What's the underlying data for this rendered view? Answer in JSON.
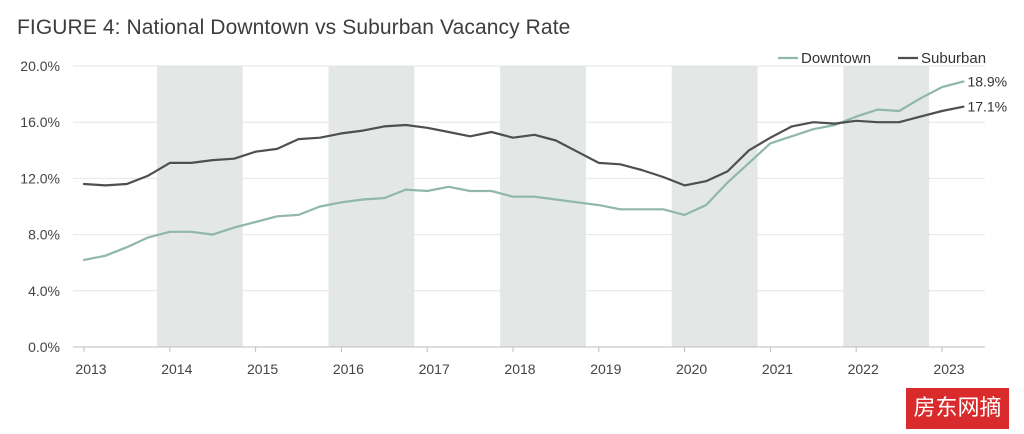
{
  "chart_data": {
    "type": "line",
    "title": "FIGURE 4: National Downtown vs Suburban Vacancy Rate",
    "xlabel": "",
    "ylabel": "",
    "xlim": [
      2013,
      2023.45
    ],
    "ylim": [
      0,
      20
    ],
    "yticks": [
      {
        "value": 0,
        "label": "0.0%"
      },
      {
        "value": 4,
        "label": "4.0%"
      },
      {
        "value": 8,
        "label": "8.0%"
      },
      {
        "value": 12,
        "label": "12.0%"
      },
      {
        "value": 16,
        "label": "16.0%"
      },
      {
        "value": 20,
        "label": "20.0%"
      }
    ],
    "xticks": [
      {
        "value": 2013,
        "label": "2013"
      },
      {
        "value": 2014,
        "label": "2014"
      },
      {
        "value": 2015,
        "label": "2015"
      },
      {
        "value": 2016,
        "label": "2016"
      },
      {
        "value": 2017,
        "label": "2017"
      },
      {
        "value": 2018,
        "label": "2018"
      },
      {
        "value": 2019,
        "label": "2019"
      },
      {
        "value": 2020,
        "label": "2020"
      },
      {
        "value": 2021,
        "label": "2021"
      },
      {
        "value": 2022,
        "label": "2022"
      },
      {
        "value": 2023,
        "label": "2023"
      }
    ],
    "shaded_periods": [
      [
        2013.85,
        2014.85
      ],
      [
        2015.85,
        2016.85
      ],
      [
        2017.85,
        2018.85
      ],
      [
        2019.85,
        2020.85
      ],
      [
        2021.85,
        2022.85
      ]
    ],
    "grid": true,
    "legend": "top-right",
    "x": [
      2013.0,
      2013.25,
      2013.5,
      2013.75,
      2014.0,
      2014.25,
      2014.5,
      2014.75,
      2015.0,
      2015.25,
      2015.5,
      2015.75,
      2016.0,
      2016.25,
      2016.5,
      2016.75,
      2017.0,
      2017.25,
      2017.5,
      2017.75,
      2018.0,
      2018.25,
      2018.5,
      2018.75,
      2019.0,
      2019.25,
      2019.5,
      2019.75,
      2020.0,
      2020.25,
      2020.5,
      2020.75,
      2021.0,
      2021.25,
      2021.5,
      2021.75,
      2022.0,
      2022.25,
      2022.5,
      2022.75,
      2023.0,
      2023.25
    ],
    "series": [
      {
        "name": "Downtown",
        "color": "#8fb8a6",
        "end_label": "18.9%",
        "values": [
          6.2,
          6.5,
          7.1,
          7.8,
          8.2,
          8.2,
          8.0,
          8.5,
          8.9,
          9.3,
          9.4,
          10.0,
          10.3,
          10.5,
          10.6,
          11.2,
          11.1,
          11.4,
          11.1,
          11.1,
          10.7,
          10.7,
          10.5,
          10.3,
          10.1,
          9.8,
          9.8,
          9.8,
          9.4,
          10.1,
          11.7,
          13.1,
          14.5,
          15.0,
          15.5,
          15.8,
          16.4,
          16.9,
          16.8,
          17.7,
          18.5,
          18.9
        ]
      },
      {
        "name": "Suburban",
        "color": "#4f4f4f",
        "end_label": "17.1%",
        "values": [
          11.6,
          11.5,
          11.6,
          12.2,
          13.1,
          13.1,
          13.3,
          13.4,
          13.9,
          14.1,
          14.8,
          14.9,
          15.2,
          15.4,
          15.7,
          15.8,
          15.6,
          15.3,
          15.0,
          15.3,
          14.9,
          15.1,
          14.7,
          13.9,
          13.1,
          13.0,
          12.6,
          12.1,
          11.5,
          11.8,
          12.5,
          14.0,
          14.9,
          15.7,
          16.0,
          15.9,
          16.1,
          16.0,
          16.0,
          16.4,
          16.8,
          17.1
        ]
      }
    ]
  },
  "watermark": "房东网摘"
}
